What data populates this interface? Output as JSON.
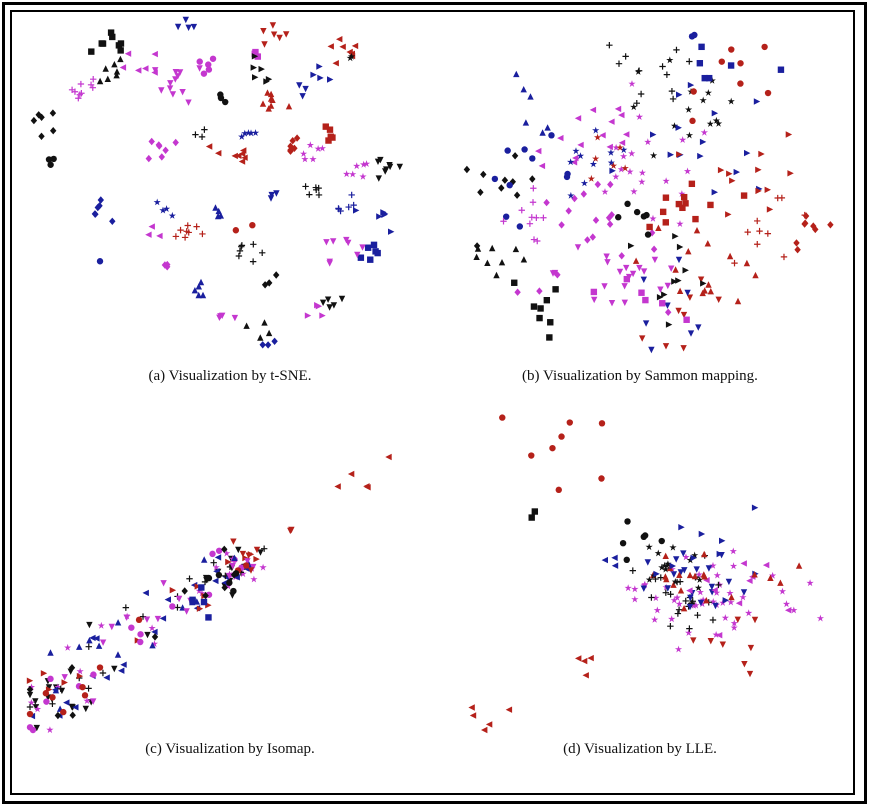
{
  "colors": {
    "black": "#111111",
    "blue": "#1a1f9e",
    "magenta": "#c437cf",
    "red": "#b5211a"
  },
  "marker_types": [
    "triangle-up",
    "triangle-down",
    "triangle-left",
    "triangle-right",
    "square",
    "circle",
    "diamond",
    "star",
    "plus"
  ],
  "chart_data": [
    {
      "id": "a",
      "type": "scatter",
      "caption": "(a)  Visualization by t-SNE.",
      "xlim": [
        0,
        1
      ],
      "ylim": [
        0,
        1
      ],
      "axes_visible": false,
      "clusters": [
        {
          "c": "black",
          "m": "square",
          "x": 0.24,
          "y": 0.92,
          "n": 8,
          "s": 0.03
        },
        {
          "c": "black",
          "m": "triangle-up",
          "x": 0.22,
          "y": 0.85,
          "n": 7,
          "s": 0.025
        },
        {
          "c": "black",
          "m": "diamond",
          "x": 0.06,
          "y": 0.7,
          "n": 6,
          "s": 0.02
        },
        {
          "c": "black",
          "m": "circle",
          "x": 0.08,
          "y": 0.58,
          "n": 3,
          "s": 0.01
        },
        {
          "c": "blue",
          "m": "triangle-down",
          "x": 0.42,
          "y": 0.97,
          "n": 4,
          "s": 0.015
        },
        {
          "c": "magenta",
          "m": "plus",
          "x": 0.17,
          "y": 0.79,
          "n": 9,
          "s": 0.02
        },
        {
          "c": "magenta",
          "m": "triangle-left",
          "x": 0.3,
          "y": 0.86,
          "n": 6,
          "s": 0.025
        },
        {
          "c": "magenta",
          "m": "triangle-down",
          "x": 0.4,
          "y": 0.81,
          "n": 12,
          "s": 0.03
        },
        {
          "c": "magenta",
          "m": "circle",
          "x": 0.46,
          "y": 0.86,
          "n": 5,
          "s": 0.015
        },
        {
          "c": "magenta",
          "m": "square",
          "x": 0.58,
          "y": 0.89,
          "n": 3,
          "s": 0.01
        },
        {
          "c": "red",
          "m": "triangle-down",
          "x": 0.63,
          "y": 0.95,
          "n": 6,
          "s": 0.02
        },
        {
          "c": "black",
          "m": "triangle-right",
          "x": 0.6,
          "y": 0.84,
          "n": 6,
          "s": 0.02
        },
        {
          "c": "red",
          "m": "triangle-up",
          "x": 0.63,
          "y": 0.75,
          "n": 8,
          "s": 0.02
        },
        {
          "c": "red",
          "m": "triangle-left",
          "x": 0.8,
          "y": 0.9,
          "n": 8,
          "s": 0.025
        },
        {
          "c": "black",
          "m": "star",
          "x": 0.83,
          "y": 0.88,
          "n": 2,
          "s": 0.01
        },
        {
          "c": "blue",
          "m": "triangle-right",
          "x": 0.76,
          "y": 0.83,
          "n": 4,
          "s": 0.015
        },
        {
          "c": "blue",
          "m": "triangle-down",
          "x": 0.71,
          "y": 0.78,
          "n": 3,
          "s": 0.01
        },
        {
          "c": "black",
          "m": "circle",
          "x": 0.5,
          "y": 0.76,
          "n": 3,
          "s": 0.01
        },
        {
          "c": "black",
          "m": "plus",
          "x": 0.45,
          "y": 0.66,
          "n": 3,
          "s": 0.01
        },
        {
          "c": "magenta",
          "m": "diamond",
          "x": 0.36,
          "y": 0.61,
          "n": 7,
          "s": 0.02
        },
        {
          "c": "blue",
          "m": "star",
          "x": 0.57,
          "y": 0.66,
          "n": 5,
          "s": 0.01
        },
        {
          "c": "red",
          "m": "triangle-left",
          "x": 0.53,
          "y": 0.59,
          "n": 8,
          "s": 0.025
        },
        {
          "c": "red",
          "m": "diamond",
          "x": 0.67,
          "y": 0.62,
          "n": 6,
          "s": 0.015
        },
        {
          "c": "red",
          "m": "square",
          "x": 0.77,
          "y": 0.66,
          "n": 5,
          "s": 0.015
        },
        {
          "c": "magenta",
          "m": "star",
          "x": 0.73,
          "y": 0.6,
          "n": 6,
          "s": 0.02
        },
        {
          "c": "blue",
          "m": "triangle-down",
          "x": 0.63,
          "y": 0.47,
          "n": 3,
          "s": 0.01
        },
        {
          "c": "black",
          "m": "triangle-down",
          "x": 0.92,
          "y": 0.55,
          "n": 8,
          "s": 0.025
        },
        {
          "c": "magenta",
          "m": "star",
          "x": 0.86,
          "y": 0.55,
          "n": 6,
          "s": 0.02
        },
        {
          "c": "black",
          "m": "plus",
          "x": 0.74,
          "y": 0.49,
          "n": 6,
          "s": 0.015
        },
        {
          "c": "blue",
          "m": "plus",
          "x": 0.8,
          "y": 0.44,
          "n": 6,
          "s": 0.02
        },
        {
          "c": "blue",
          "m": "triangle-right",
          "x": 0.91,
          "y": 0.4,
          "n": 6,
          "s": 0.02
        },
        {
          "c": "blue",
          "m": "square",
          "x": 0.88,
          "y": 0.3,
          "n": 6,
          "s": 0.02
        },
        {
          "c": "magenta",
          "m": "triangle-down",
          "x": 0.8,
          "y": 0.32,
          "n": 8,
          "s": 0.025
        },
        {
          "c": "blue",
          "m": "diamond",
          "x": 0.19,
          "y": 0.42,
          "n": 6,
          "s": 0.015
        },
        {
          "c": "blue",
          "m": "circle",
          "x": 0.2,
          "y": 0.27,
          "n": 1,
          "s": 0.005
        },
        {
          "c": "magenta",
          "m": "triangle-left",
          "x": 0.33,
          "y": 0.34,
          "n": 3,
          "s": 0.015
        },
        {
          "c": "blue",
          "m": "star",
          "x": 0.37,
          "y": 0.43,
          "n": 4,
          "s": 0.015
        },
        {
          "c": "red",
          "m": "plus",
          "x": 0.42,
          "y": 0.36,
          "n": 8,
          "s": 0.02
        },
        {
          "c": "blue",
          "m": "triangle-up",
          "x": 0.49,
          "y": 0.42,
          "n": 4,
          "s": 0.015
        },
        {
          "c": "red",
          "m": "circle",
          "x": 0.56,
          "y": 0.37,
          "n": 2,
          "s": 0.01
        },
        {
          "c": "black",
          "m": "plus",
          "x": 0.55,
          "y": 0.3,
          "n": 7,
          "s": 0.02
        },
        {
          "c": "magenta",
          "m": "diamond",
          "x": 0.37,
          "y": 0.25,
          "n": 3,
          "s": 0.01
        },
        {
          "c": "blue",
          "m": "triangle-up",
          "x": 0.45,
          "y": 0.18,
          "n": 5,
          "s": 0.015
        },
        {
          "c": "black",
          "m": "diamond",
          "x": 0.62,
          "y": 0.21,
          "n": 3,
          "s": 0.01
        },
        {
          "c": "magenta",
          "m": "triangle-down",
          "x": 0.52,
          "y": 0.11,
          "n": 4,
          "s": 0.015
        },
        {
          "c": "black",
          "m": "triangle-up",
          "x": 0.61,
          "y": 0.07,
          "n": 4,
          "s": 0.015
        },
        {
          "c": "blue",
          "m": "diamond",
          "x": 0.62,
          "y": 0.03,
          "n": 3,
          "s": 0.015
        },
        {
          "c": "black",
          "m": "triangle-down",
          "x": 0.78,
          "y": 0.15,
          "n": 5,
          "s": 0.015
        },
        {
          "c": "magenta",
          "m": "triangle-right",
          "x": 0.75,
          "y": 0.11,
          "n": 4,
          "s": 0.015
        }
      ]
    },
    {
      "id": "b",
      "type": "scatter",
      "caption": "(b)  Visualization by Sammon mapping.",
      "xlim": [
        0,
        1
      ],
      "ylim": [
        0,
        1
      ],
      "axes_visible": false,
      "clusters": [
        {
          "c": "black",
          "m": "diamond",
          "x": 0.12,
          "y": 0.5,
          "n": 10,
          "s": 0.05
        },
        {
          "c": "black",
          "m": "triangle-up",
          "x": 0.12,
          "y": 0.3,
          "n": 8,
          "s": 0.05
        },
        {
          "c": "black",
          "m": "square",
          "x": 0.25,
          "y": 0.15,
          "n": 8,
          "s": 0.05
        },
        {
          "c": "blue",
          "m": "circle",
          "x": 0.2,
          "y": 0.55,
          "n": 10,
          "s": 0.06
        },
        {
          "c": "blue",
          "m": "triangle-up",
          "x": 0.2,
          "y": 0.78,
          "n": 6,
          "s": 0.05
        },
        {
          "c": "magenta",
          "m": "plus",
          "x": 0.2,
          "y": 0.42,
          "n": 10,
          "s": 0.04
        },
        {
          "c": "magenta",
          "m": "diamond",
          "x": 0.35,
          "y": 0.35,
          "n": 20,
          "s": 0.09
        },
        {
          "c": "magenta",
          "m": "triangle-left",
          "x": 0.35,
          "y": 0.68,
          "n": 15,
          "s": 0.08
        },
        {
          "c": "magenta",
          "m": "triangle-down",
          "x": 0.45,
          "y": 0.25,
          "n": 20,
          "s": 0.09
        },
        {
          "c": "magenta",
          "m": "star",
          "x": 0.5,
          "y": 0.55,
          "n": 20,
          "s": 0.09
        },
        {
          "c": "black",
          "m": "plus",
          "x": 0.48,
          "y": 0.85,
          "n": 12,
          "s": 0.08
        },
        {
          "c": "black",
          "m": "star",
          "x": 0.6,
          "y": 0.75,
          "n": 15,
          "s": 0.09
        },
        {
          "c": "blue",
          "m": "triangle-right",
          "x": 0.65,
          "y": 0.65,
          "n": 15,
          "s": 0.09
        },
        {
          "c": "blue",
          "m": "star",
          "x": 0.35,
          "y": 0.55,
          "n": 10,
          "s": 0.06
        },
        {
          "c": "red",
          "m": "circle",
          "x": 0.75,
          "y": 0.88,
          "n": 8,
          "s": 0.06
        },
        {
          "c": "red",
          "m": "square",
          "x": 0.6,
          "y": 0.45,
          "n": 12,
          "s": 0.06
        },
        {
          "c": "red",
          "m": "triangle-right",
          "x": 0.78,
          "y": 0.55,
          "n": 12,
          "s": 0.07
        },
        {
          "c": "red",
          "m": "triangle-up",
          "x": 0.65,
          "y": 0.3,
          "n": 15,
          "s": 0.08
        },
        {
          "c": "red",
          "m": "triangle-down",
          "x": 0.6,
          "y": 0.08,
          "n": 8,
          "s": 0.06
        },
        {
          "c": "red",
          "m": "plus",
          "x": 0.82,
          "y": 0.4,
          "n": 10,
          "s": 0.06
        },
        {
          "c": "red",
          "m": "diamond",
          "x": 0.92,
          "y": 0.38,
          "n": 8,
          "s": 0.03
        },
        {
          "c": "black",
          "m": "triangle-right",
          "x": 0.55,
          "y": 0.25,
          "n": 10,
          "s": 0.07
        },
        {
          "c": "blue",
          "m": "triangle-down",
          "x": 0.55,
          "y": 0.18,
          "n": 8,
          "s": 0.07
        },
        {
          "c": "magenta",
          "m": "square",
          "x": 0.48,
          "y": 0.18,
          "n": 6,
          "s": 0.05
        },
        {
          "c": "blue",
          "m": "square",
          "x": 0.68,
          "y": 0.85,
          "n": 6,
          "s": 0.05
        },
        {
          "c": "black",
          "m": "circle",
          "x": 0.42,
          "y": 0.4,
          "n": 6,
          "s": 0.06
        },
        {
          "c": "red",
          "m": "star",
          "x": 0.4,
          "y": 0.6,
          "n": 6,
          "s": 0.05
        },
        {
          "c": "blue",
          "m": "circle",
          "x": 0.62,
          "y": 1.0,
          "n": 2,
          "s": 0.01
        }
      ]
    },
    {
      "id": "c",
      "type": "scatter",
      "caption": "(c)  Visualization by Isomap.",
      "xlim": [
        0,
        1
      ],
      "ylim": [
        0,
        1
      ],
      "axes_visible": false,
      "spine": [
        [
          0.02,
          0.05
        ],
        [
          0.12,
          0.15
        ],
        [
          0.3,
          0.35
        ],
        [
          0.5,
          0.5
        ],
        [
          0.6,
          0.58
        ]
      ],
      "clusters": [
        {
          "c": "black",
          "m": "triangle-down",
          "x": 0.08,
          "y": 0.1,
          "n": 30,
          "s": 0.05,
          "along_spine": true
        },
        {
          "c": "magenta",
          "m": "star",
          "x": 0.08,
          "y": 0.12,
          "n": 25,
          "s": 0.06,
          "along_spine": true
        },
        {
          "c": "blue",
          "m": "triangle-left",
          "x": 0.08,
          "y": 0.12,
          "n": 25,
          "s": 0.06,
          "along_spine": true
        },
        {
          "c": "black",
          "m": "plus",
          "x": 0.08,
          "y": 0.14,
          "n": 20,
          "s": 0.06,
          "along_spine": true
        },
        {
          "c": "red",
          "m": "triangle-right",
          "x": 0.1,
          "y": 0.15,
          "n": 15,
          "s": 0.06,
          "along_spine": true
        },
        {
          "c": "magenta",
          "m": "circle",
          "x": 0.2,
          "y": 0.25,
          "n": 15,
          "s": 0.08,
          "along_spine": true
        },
        {
          "c": "blue",
          "m": "triangle-up",
          "x": 0.3,
          "y": 0.35,
          "n": 15,
          "s": 0.08,
          "along_spine": true
        },
        {
          "c": "magenta",
          "m": "triangle-down",
          "x": 0.35,
          "y": 0.4,
          "n": 15,
          "s": 0.08,
          "along_spine": true
        },
        {
          "c": "black",
          "m": "diamond",
          "x": 0.2,
          "y": 0.3,
          "n": 10,
          "s": 0.06,
          "along_spine": true
        },
        {
          "c": "red",
          "m": "circle",
          "x": 0.2,
          "y": 0.25,
          "n": 10,
          "s": 0.06,
          "along_spine": true
        },
        {
          "c": "blue",
          "m": "square",
          "x": 0.45,
          "y": 0.43,
          "n": 5,
          "s": 0.03
        },
        {
          "c": "black",
          "m": "circle",
          "x": 0.52,
          "y": 0.5,
          "n": 5,
          "s": 0.02
        },
        {
          "c": "red",
          "m": "triangle-down",
          "x": 0.6,
          "y": 0.57,
          "n": 5,
          "s": 0.03
        },
        {
          "c": "red",
          "m": "triangle-left",
          "x": 0.88,
          "y": 0.87,
          "n": 5,
          "s": 0.04
        },
        {
          "c": "red",
          "m": "triangle-down",
          "x": 0.68,
          "y": 0.65,
          "n": 2,
          "s": 0.02
        }
      ]
    },
    {
      "id": "d",
      "type": "scatter",
      "caption": "(d)  Visualization by LLE.",
      "xlim": [
        0,
        1
      ],
      "ylim": [
        0,
        1
      ],
      "axes_visible": false,
      "clusters": [
        {
          "c": "magenta",
          "m": "star",
          "x": 0.6,
          "y": 0.4,
          "n": 40,
          "s": 0.07
        },
        {
          "c": "black",
          "m": "plus",
          "x": 0.58,
          "y": 0.4,
          "n": 25,
          "s": 0.06
        },
        {
          "c": "blue",
          "m": "triangle-down",
          "x": 0.62,
          "y": 0.42,
          "n": 20,
          "s": 0.06
        },
        {
          "c": "red",
          "m": "triangle-up",
          "x": 0.58,
          "y": 0.45,
          "n": 15,
          "s": 0.05
        },
        {
          "c": "black",
          "m": "star",
          "x": 0.55,
          "y": 0.5,
          "n": 15,
          "s": 0.05
        },
        {
          "c": "blue",
          "m": "triangle-right",
          "x": 0.65,
          "y": 0.55,
          "n": 10,
          "s": 0.06
        },
        {
          "c": "magenta",
          "m": "triangle-left",
          "x": 0.7,
          "y": 0.42,
          "n": 10,
          "s": 0.06
        },
        {
          "c": "red",
          "m": "circle",
          "x": 0.3,
          "y": 0.85,
          "n": 8,
          "s": 0.08
        },
        {
          "c": "black",
          "m": "circle",
          "x": 0.47,
          "y": 0.6,
          "n": 6,
          "s": 0.04
        },
        {
          "c": "black",
          "m": "square",
          "x": 0.28,
          "y": 0.72,
          "n": 2,
          "s": 0.04
        },
        {
          "c": "red",
          "m": "triangle-down",
          "x": 0.7,
          "y": 0.25,
          "n": 8,
          "s": 0.05
        },
        {
          "c": "red",
          "m": "triangle-left",
          "x": 0.34,
          "y": 0.2,
          "n": 4,
          "s": 0.02
        },
        {
          "c": "red",
          "m": "triangle-left",
          "x": 0.1,
          "y": 0.05,
          "n": 5,
          "s": 0.04
        },
        {
          "c": "magenta",
          "m": "star",
          "x": 0.82,
          "y": 0.38,
          "n": 6,
          "s": 0.04
        },
        {
          "c": "blue",
          "m": "triangle-left",
          "x": 0.41,
          "y": 0.52,
          "n": 3,
          "s": 0.03
        },
        {
          "c": "red",
          "m": "triangle-up",
          "x": 0.75,
          "y": 0.45,
          "n": 5,
          "s": 0.04
        }
      ]
    }
  ]
}
